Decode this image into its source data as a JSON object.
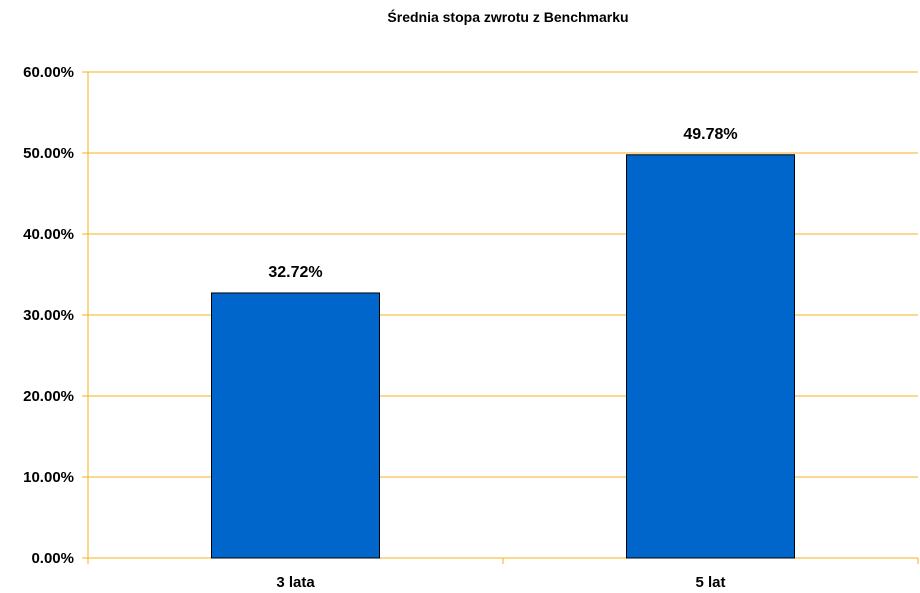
{
  "chart_data": {
    "type": "bar",
    "title": "Średnia stopa zwrotu z Benchmarku",
    "categories": [
      "3 lata",
      "5 lat"
    ],
    "values": [
      32.72,
      49.78
    ],
    "data_labels": [
      "32.72%",
      "49.78%"
    ],
    "ylim": [
      0,
      60
    ],
    "yticks": [
      0,
      10,
      20,
      30,
      40,
      50,
      60
    ],
    "ytick_labels": [
      "0.00%",
      "10.00%",
      "20.00%",
      "30.00%",
      "40.00%",
      "50.00%",
      "60.00%"
    ],
    "xlabel": "",
    "ylabel": "",
    "grid": true,
    "legend": "none",
    "colors": {
      "bar": "#0066CC",
      "bar_edge": "#000000",
      "grid": "#F5B021",
      "axis": "#F5B021"
    }
  }
}
